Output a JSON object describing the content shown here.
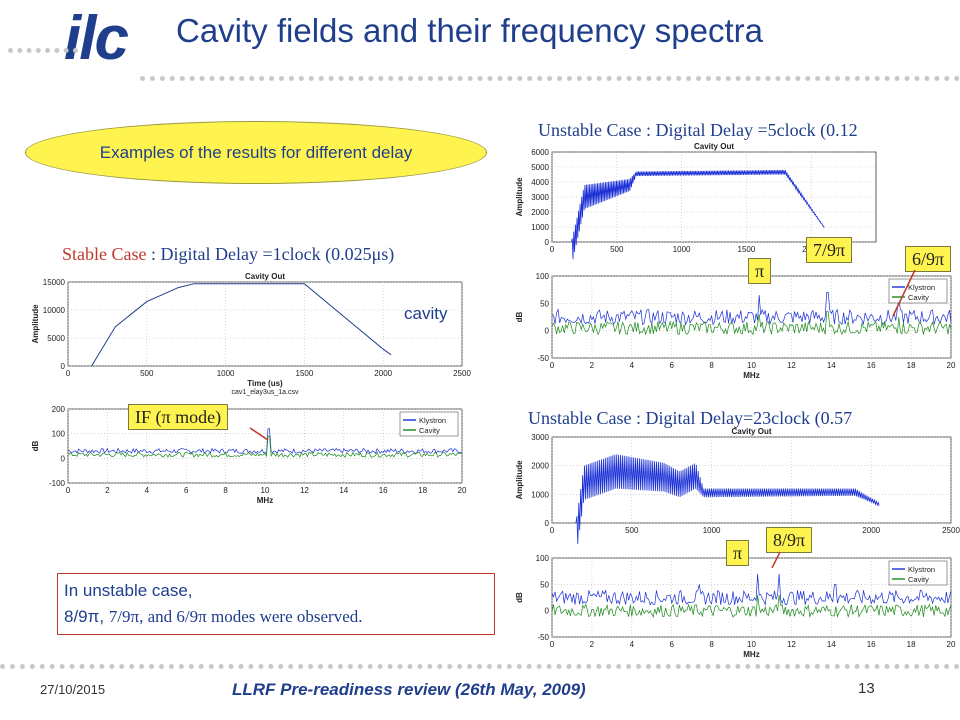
{
  "header": {
    "logo_text": "ilc",
    "title": "Cavity fields and their frequency spectra"
  },
  "intro_label": "Examples of the results for different delay",
  "captions": {
    "stable_case": "Stable Case",
    "stable_rest": " : Digital Delay =1clock (0.025",
    "stable_unit": "μs)",
    "unstable1": "Unstable Case : Digital Delay =5clock (0.12",
    "unstable2": "Unstable Case : Digital Delay=23clock (0.57"
  },
  "annotations": {
    "cavity": "cavity",
    "if_mode": "IF (π mode)",
    "pi_a": "π",
    "seven_ninths": "7/9π",
    "six_ninths": "6/9π",
    "pi_b": "π",
    "eight_ninths": "8/9π"
  },
  "note": {
    "line1": "In unstable case,",
    "line2_a": "8/9π, ",
    "line2_b": "7/9π, and 6/9π modes were observed."
  },
  "footer": {
    "date": "27/10/2015",
    "review": "LLRF Pre-readiness review (26th May, 2009)",
    "page": "13"
  },
  "colors": {
    "accent": "#1f3e8c",
    "highlight": "#fff44f",
    "klystron": "#1a2fd6",
    "cavity": "#1a8a1a",
    "red": "#c0392b"
  },
  "chart_data": [
    {
      "id": "stable-cavity",
      "type": "line",
      "title": "Cavity Out",
      "xlabel": "Time (us)",
      "ylabel": "Amplitude",
      "subtext": "cav1_elay3us_1a.csv",
      "xlim": [
        0,
        2500
      ],
      "ylim": [
        0,
        15000
      ],
      "xticks": [
        0,
        500,
        1000,
        1500,
        2000,
        2500
      ],
      "yticks": [
        0,
        5000,
        10000,
        15000
      ],
      "series": [
        {
          "values_kind": "envelope",
          "color": "#1f3e8c",
          "points": [
            [
              150,
              0
            ],
            [
              300,
              7000
            ],
            [
              500,
              11500
            ],
            [
              700,
              14000
            ],
            [
              800,
              14700
            ],
            [
              1500,
              14700
            ],
            [
              1550,
              13500
            ],
            [
              1700,
              10000
            ],
            [
              1850,
              6500
            ],
            [
              2000,
              3000
            ],
            [
              2050,
              2000
            ]
          ]
        }
      ]
    },
    {
      "id": "stable-spectrum",
      "type": "line",
      "xlabel": "MHz",
      "ylabel": "dB",
      "xlim": [
        0,
        20
      ],
      "ylim": [
        -100,
        200
      ],
      "xticks": [
        0,
        2,
        4,
        6,
        8,
        10,
        12,
        14,
        16,
        18,
        20
      ],
      "yticks": [
        -100,
        0,
        100,
        200
      ],
      "legend": [
        "Klystron",
        "Cavity"
      ],
      "series": [
        {
          "name": "Klystron",
          "color": "#1a2fd6",
          "base": 30,
          "noise": 10,
          "peaks": [
            [
              10.2,
              90
            ]
          ]
        },
        {
          "name": "Cavity",
          "color": "#1a8a1a",
          "base": 15,
          "noise": 10,
          "peaks": [
            [
              10.2,
              75
            ]
          ]
        }
      ]
    },
    {
      "id": "unstable1-cavity",
      "type": "line",
      "title": "Cavity Out",
      "xlabel": "",
      "ylabel": "Amplitude",
      "xlim": [
        0,
        2500
      ],
      "ylim": [
        0,
        6000
      ],
      "xticks": [
        0,
        500,
        1000,
        1500,
        2000
      ],
      "yticks": [
        0,
        1000,
        2000,
        3000,
        4000,
        5000,
        6000
      ],
      "series": [
        {
          "values_kind": "oscillating",
          "color": "#1a2fd6",
          "points": [
            [
              150,
              0
            ],
            [
              250,
              3800
            ],
            [
              600,
              4200
            ],
            [
              650,
              4700
            ],
            [
              1800,
              4800
            ],
            [
              2100,
              1000
            ]
          ],
          "band": [
            [
              250,
              1600
            ],
            [
              600,
              800
            ],
            [
              650,
              300
            ],
            [
              1800,
              300
            ],
            [
              2100,
              50
            ]
          ]
        }
      ]
    },
    {
      "id": "unstable1-spectrum",
      "type": "line",
      "xlabel": "MHz",
      "ylabel": "dB",
      "xlim": [
        0,
        20
      ],
      "ylim": [
        -50,
        100
      ],
      "xticks": [
        0,
        2,
        4,
        6,
        8,
        10,
        12,
        14,
        16,
        18,
        20
      ],
      "yticks": [
        -50,
        0,
        50,
        100
      ],
      "legend": [
        "Klystron",
        "Cavity"
      ],
      "series": [
        {
          "name": "Klystron",
          "color": "#1a2fd6",
          "base": 25,
          "noise": 14,
          "peaks": [
            [
              10.4,
              40
            ],
            [
              13.8,
              45
            ],
            [
              17.4,
              35
            ]
          ]
        },
        {
          "name": "Cavity",
          "color": "#1a8a1a",
          "base": 5,
          "noise": 12,
          "peaks": [
            [
              10.4,
              25
            ],
            [
              13.8,
              30
            ],
            [
              17.4,
              20
            ]
          ]
        }
      ]
    },
    {
      "id": "unstable2-cavity",
      "type": "line",
      "title": "Cavity Out",
      "xlabel": "",
      "ylabel": "Amplitude",
      "xlim": [
        0,
        2500
      ],
      "ylim": [
        0,
        3000
      ],
      "xticks": [
        0,
        500,
        1000,
        1500,
        2000,
        2500
      ],
      "yticks": [
        0,
        1000,
        2000,
        3000
      ],
      "series": [
        {
          "values_kind": "oscillating",
          "color": "#1a2fd6",
          "points": [
            [
              150,
              0
            ],
            [
              200,
              2000
            ],
            [
              400,
              2400
            ],
            [
              700,
              2100
            ],
            [
              800,
              1800
            ],
            [
              900,
              2100
            ],
            [
              950,
              1200
            ],
            [
              1900,
              1200
            ],
            [
              2050,
              700
            ]
          ],
          "band": [
            [
              200,
              1200
            ],
            [
              400,
              1200
            ],
            [
              700,
              1000
            ],
            [
              800,
              900
            ],
            [
              900,
              900
            ],
            [
              950,
              300
            ],
            [
              1900,
              250
            ],
            [
              2050,
              100
            ]
          ]
        }
      ]
    },
    {
      "id": "unstable2-spectrum",
      "type": "line",
      "xlabel": "MHz",
      "ylabel": "dB",
      "xlim": [
        0,
        20
      ],
      "ylim": [
        -50,
        100
      ],
      "xticks": [
        0,
        2,
        4,
        6,
        8,
        10,
        12,
        14,
        16,
        18,
        20
      ],
      "yticks": [
        -50,
        0,
        50,
        100
      ],
      "legend": [
        "Klystron",
        "Cavity"
      ],
      "series": [
        {
          "name": "Klystron",
          "color": "#1a2fd6",
          "base": 25,
          "noise": 14,
          "peaks": [
            [
              10.3,
              45
            ],
            [
              11.4,
              45
            ],
            [
              7.4,
              25
            ],
            [
              14.2,
              25
            ]
          ]
        },
        {
          "name": "Cavity",
          "color": "#1a8a1a",
          "base": 0,
          "noise": 12,
          "peaks": [
            [
              10.3,
              30
            ],
            [
              11.4,
              30
            ]
          ]
        }
      ]
    }
  ]
}
